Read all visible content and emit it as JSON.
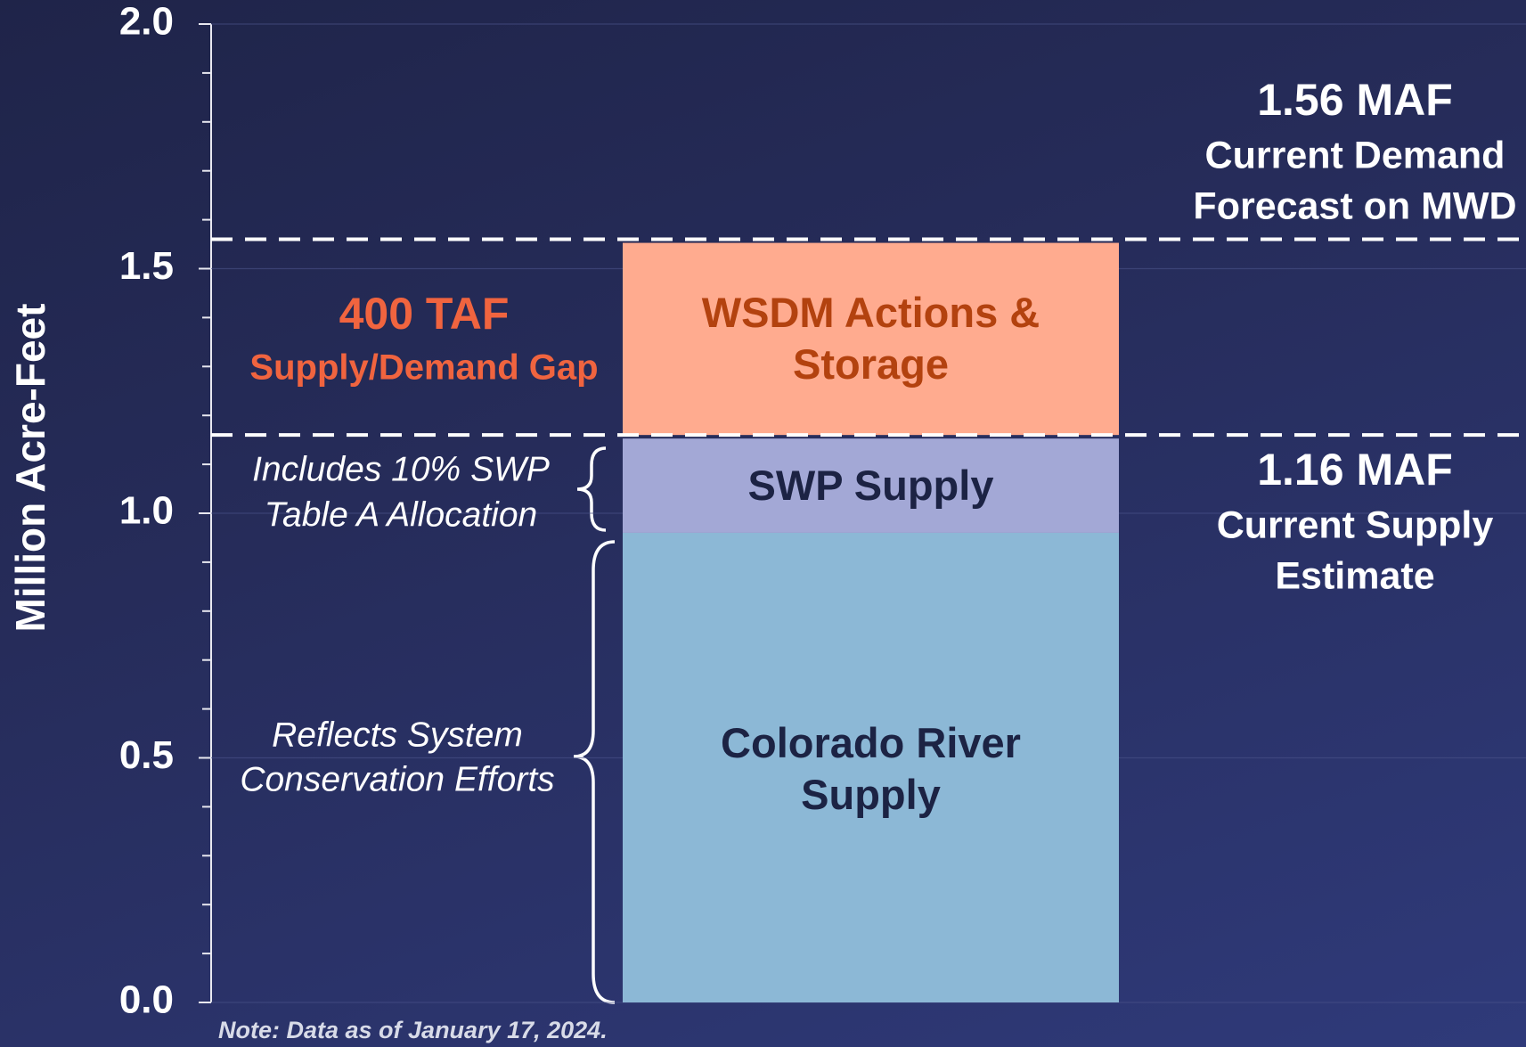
{
  "chart_data": {
    "type": "stacked_bar",
    "y_label": "Million Acre-Feet",
    "categories": [
      null
    ],
    "series": [
      {
        "name": "Colorado River Supply",
        "color": "#8cb8d6",
        "text_color": "#1c2344",
        "values": [
          0.96
        ]
      },
      {
        "name": "SWP Supply",
        "color": "#a3a8d6",
        "text_color": "#1c2344",
        "values": [
          0.2
        ]
      },
      {
        "name": "WSDM Actions & Storage",
        "color": "#ffab8f",
        "text_color": "#b3420f",
        "values": [
          0.4
        ]
      }
    ],
    "ylim": [
      0,
      2.0
    ],
    "yticks": [
      {
        "value": 0,
        "label": "0.0"
      },
      {
        "value": 0.5,
        "label": "0.5"
      },
      {
        "value": 1,
        "label": "1.0"
      },
      {
        "value": 1.5,
        "label": "1.5"
      },
      {
        "value": 2,
        "label": "2.0"
      }
    ],
    "minor_yticks": [
      0.1,
      0.2,
      0.3,
      0.4,
      0.6,
      0.7,
      0.8,
      0.9,
      1.1,
      1.2,
      1.3,
      1.4,
      1.6,
      1.7,
      1.8,
      1.9
    ],
    "grid": true,
    "reference_lines": [
      {
        "value": 1.56,
        "label": "1.56 MAF",
        "text": [
          "Current Demand",
          "Forecast on MWD"
        ]
      },
      {
        "value": 1.16,
        "label": "1.16 MAF",
        "text": [
          "Current Supply",
          "Estimate"
        ]
      }
    ],
    "gap_label": {
      "title": "400 TAF",
      "text": "Supply/Demand Gap",
      "color": "#f0643f"
    },
    "brace_notes": [
      [
        "Includes 10% SWP",
        "Table A Allocation"
      ],
      [
        "Reflects System",
        "Conservation Efforts"
      ]
    ],
    "note": "Note: Data as of January 17, 2024."
  }
}
